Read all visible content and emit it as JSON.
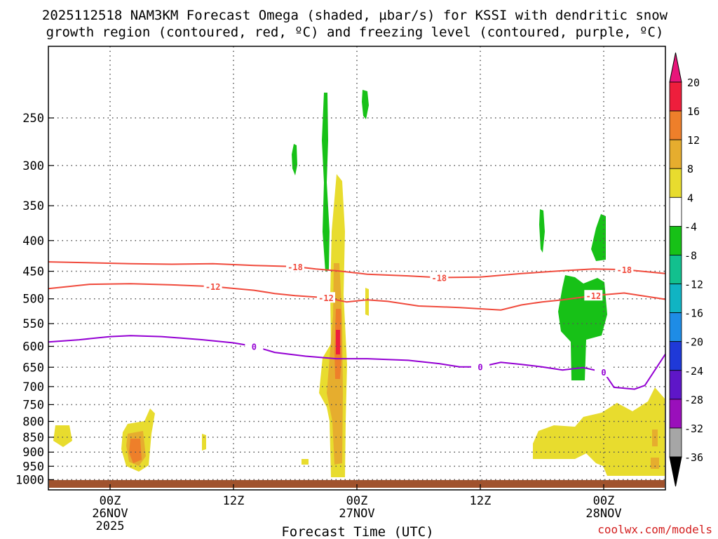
{
  "chart_data": {
    "type": "contour-shaded",
    "title_line1": "2025112518 NAM3KM Forecast Omega (shaded, µbar/s) for KSSI with dendritic snow",
    "title_line2": "growth region (contoured, red, ºC) and freezing level (contoured, purple, ºC)",
    "xlabel": "Forecast Time (UTC)",
    "credit": "coolwx.com/models",
    "x_ticks": [
      {
        "hours": 6,
        "line1": "00Z",
        "line2": "26NOV",
        "line3": "2025"
      },
      {
        "hours": 18,
        "line1": "12Z",
        "line2": "",
        "line3": ""
      },
      {
        "hours": 30,
        "line1": "00Z",
        "line2": "27NOV",
        "line3": ""
      },
      {
        "hours": 42,
        "line1": "12Z",
        "line2": "",
        "line3": ""
      },
      {
        "hours": 54,
        "line1": "00Z",
        "line2": "28NOV",
        "line3": ""
      }
    ],
    "xlim_hours": [
      0,
      60
    ],
    "y_axis": "pressure (hPa)",
    "y_scale": "log",
    "ylim": [
      1040,
      190
    ],
    "y_ticks": [
      250,
      300,
      350,
      400,
      450,
      500,
      550,
      600,
      650,
      700,
      750,
      800,
      850,
      900,
      950,
      1000
    ],
    "grid": true,
    "colorbar": {
      "unit": "µbar/s",
      "boundaries": [
        20,
        16,
        12,
        8,
        4,
        -4,
        -8,
        -12,
        -16,
        -20,
        -24,
        -28,
        -32,
        -36
      ],
      "colors": [
        "#ee1e3c",
        "#ee7f2a",
        "#e6ad2e",
        "#e8dc2e",
        "#ffffff",
        "#17c117",
        "#12c08e",
        "#10b4c3",
        "#1e8ce6",
        "#1f39d8",
        "#5e16c8",
        "#9a0fbb",
        "#a6a6a6"
      ],
      "top_arrow_color": "#e8157a",
      "bottom_arrow_color": "#000000"
    },
    "contours": [
      {
        "name": "-18",
        "color": "#f04a3c",
        "label": "-18",
        "points": [
          [
            0,
            434
          ],
          [
            8,
            437
          ],
          [
            12,
            438
          ],
          [
            16,
            437
          ],
          [
            20,
            440
          ],
          [
            24,
            442
          ],
          [
            26,
            446
          ],
          [
            28,
            449
          ],
          [
            31,
            455
          ],
          [
            35,
            458
          ],
          [
            38,
            461
          ],
          [
            42,
            460
          ],
          [
            46,
            454
          ],
          [
            50,
            449
          ],
          [
            53,
            446
          ],
          [
            56,
            447
          ],
          [
            60,
            454
          ]
        ]
      },
      {
        "name": "-12",
        "color": "#f04a3c",
        "label": "-12",
        "points": [
          [
            0,
            481
          ],
          [
            4,
            473
          ],
          [
            8,
            472
          ],
          [
            12,
            474
          ],
          [
            16,
            477
          ],
          [
            20,
            484
          ],
          [
            22,
            490
          ],
          [
            24,
            494
          ],
          [
            27,
            498
          ],
          [
            29,
            506
          ],
          [
            31,
            502
          ],
          [
            33,
            505
          ],
          [
            36,
            514
          ],
          [
            40,
            517
          ],
          [
            44,
            522
          ],
          [
            46,
            512
          ],
          [
            48,
            506
          ],
          [
            50,
            502
          ],
          [
            53,
            494
          ],
          [
            56,
            489
          ],
          [
            60,
            501
          ]
        ]
      },
      {
        "name": "0",
        "color": "#9400d3",
        "label": "0",
        "points": [
          [
            0,
            590
          ],
          [
            3,
            585
          ],
          [
            6,
            578
          ],
          [
            8,
            576
          ],
          [
            11,
            578
          ],
          [
            15,
            585
          ],
          [
            18,
            592
          ],
          [
            20,
            600
          ],
          [
            22,
            614
          ],
          [
            25,
            623
          ],
          [
            28,
            629
          ],
          [
            31,
            629
          ],
          [
            35,
            633
          ],
          [
            38,
            641
          ],
          [
            40,
            649
          ],
          [
            42,
            649
          ],
          [
            44,
            638
          ],
          [
            46,
            643
          ],
          [
            48,
            649
          ],
          [
            50,
            657
          ],
          [
            52,
            651
          ],
          [
            54,
            662
          ],
          [
            55,
            702
          ],
          [
            57,
            707
          ],
          [
            58,
            697
          ],
          [
            60,
            618
          ]
        ]
      }
    ],
    "annotations": [
      "-18",
      "-12",
      "0"
    ]
  }
}
